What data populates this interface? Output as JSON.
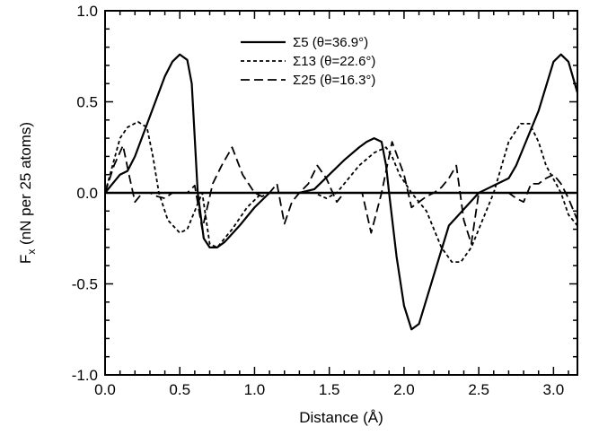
{
  "chart_data": {
    "type": "line",
    "xlabel": "Distance  (Å)",
    "ylabel": {
      "prefix": "F",
      "sub": "x",
      "suffix": "  (nN per 25 atoms)"
    },
    "xlim": [
      0.0,
      3.16
    ],
    "ylim": [
      -1.0,
      1.0
    ],
    "xticks": [
      0.0,
      0.5,
      1.0,
      1.5,
      2.0,
      2.5,
      3.0
    ],
    "xtick_labels": [
      "0.0",
      "0.5",
      "1.0",
      "1.5",
      "2.0",
      "2.5",
      "3.0"
    ],
    "yticks": [
      -1.0,
      -0.5,
      0.0,
      0.5,
      1.0
    ],
    "ytick_labels": [
      "-1.0",
      "-0.5",
      "0.0",
      "0.5",
      "1.0"
    ],
    "grid": false,
    "legend_position": "top-center",
    "zero_line": true,
    "series": [
      {
        "name": "Σ5 (θ=36.9°)",
        "style": "solid",
        "x": [
          0.0,
          0.05,
          0.1,
          0.15,
          0.2,
          0.3,
          0.4,
          0.45,
          0.5,
          0.55,
          0.58,
          0.6,
          0.62,
          0.66,
          0.7,
          0.75,
          0.8,
          0.9,
          1.0,
          1.1,
          1.2,
          1.3,
          1.4,
          1.5,
          1.6,
          1.7,
          1.75,
          1.8,
          1.85,
          1.88,
          1.9,
          1.95,
          2.0,
          2.05,
          2.1,
          2.2,
          2.3,
          2.4,
          2.5,
          2.55,
          2.6,
          2.7,
          2.75,
          2.8,
          2.9,
          3.0,
          3.05,
          3.1,
          3.16
        ],
        "y": [
          0.0,
          0.05,
          0.1,
          0.12,
          0.2,
          0.42,
          0.64,
          0.72,
          0.76,
          0.73,
          0.6,
          0.3,
          0.0,
          -0.25,
          -0.3,
          -0.3,
          -0.27,
          -0.18,
          -0.08,
          0.0,
          0.0,
          0.0,
          0.02,
          0.1,
          0.18,
          0.25,
          0.28,
          0.3,
          0.28,
          0.15,
          0.0,
          -0.35,
          -0.62,
          -0.75,
          -0.72,
          -0.45,
          -0.18,
          -0.09,
          0.0,
          0.02,
          0.04,
          0.08,
          0.15,
          0.25,
          0.45,
          0.72,
          0.76,
          0.72,
          0.55
        ]
      },
      {
        "name": "Σ13 (θ=22.6°)",
        "style": "dotted",
        "x": [
          0.0,
          0.05,
          0.1,
          0.15,
          0.22,
          0.28,
          0.32,
          0.36,
          0.42,
          0.5,
          0.55,
          0.6,
          0.65,
          0.7,
          0.75,
          0.85,
          0.95,
          1.05,
          1.1,
          1.2,
          1.3,
          1.4,
          1.48,
          1.55,
          1.6,
          1.7,
          1.8,
          1.88,
          1.92,
          1.97,
          2.05,
          2.15,
          2.25,
          2.32,
          2.38,
          2.45,
          2.5,
          2.6,
          2.7,
          2.78,
          2.84,
          2.9,
          2.95,
          3.05,
          3.1,
          3.16
        ],
        "y": [
          0.0,
          0.15,
          0.3,
          0.36,
          0.39,
          0.36,
          0.2,
          0.0,
          -0.15,
          -0.22,
          -0.2,
          -0.1,
          0.0,
          -0.28,
          -0.3,
          -0.2,
          -0.08,
          0.0,
          0.0,
          0.0,
          0.0,
          0.0,
          -0.03,
          0.0,
          0.05,
          0.15,
          0.22,
          0.25,
          0.2,
          0.1,
          0.0,
          -0.1,
          -0.3,
          -0.38,
          -0.38,
          -0.3,
          -0.2,
          0.0,
          0.28,
          0.38,
          0.38,
          0.28,
          0.15,
          0.0,
          -0.12,
          -0.18
        ]
      },
      {
        "name": "Σ25 (θ=16.3°)",
        "style": "dashed",
        "x": [
          0.0,
          0.06,
          0.12,
          0.16,
          0.2,
          0.25,
          0.3,
          0.35,
          0.4,
          0.45,
          0.5,
          0.55,
          0.6,
          0.65,
          0.72,
          0.78,
          0.85,
          0.92,
          1.0,
          1.05,
          1.1,
          1.15,
          1.2,
          1.25,
          1.3,
          1.36,
          1.42,
          1.48,
          1.55,
          1.6,
          1.65,
          1.72,
          1.78,
          1.85,
          1.92,
          2.0,
          2.05,
          2.1,
          2.15,
          2.2,
          2.25,
          2.3,
          2.35,
          2.4,
          2.45,
          2.5,
          2.55,
          2.6,
          2.65,
          2.7,
          2.75,
          2.8,
          2.85,
          2.9,
          2.95,
          3.0,
          3.05,
          3.1,
          3.16
        ],
        "y": [
          0.0,
          0.15,
          0.26,
          0.1,
          -0.05,
          0.0,
          0.0,
          -0.02,
          -0.03,
          0.0,
          0.0,
          0.0,
          0.04,
          -0.2,
          0.05,
          0.15,
          0.25,
          0.1,
          0.0,
          -0.02,
          0.0,
          0.05,
          -0.17,
          -0.05,
          0.0,
          0.05,
          0.15,
          0.08,
          -0.05,
          0.0,
          0.0,
          0.0,
          -0.22,
          0.0,
          0.28,
          0.1,
          -0.08,
          -0.05,
          -0.02,
          0.0,
          0.03,
          0.08,
          0.15,
          -0.15,
          -0.28,
          0.0,
          0.0,
          0.0,
          0.0,
          0.0,
          -0.03,
          -0.05,
          0.05,
          0.05,
          0.08,
          0.1,
          0.05,
          -0.03,
          -0.15
        ]
      }
    ]
  }
}
